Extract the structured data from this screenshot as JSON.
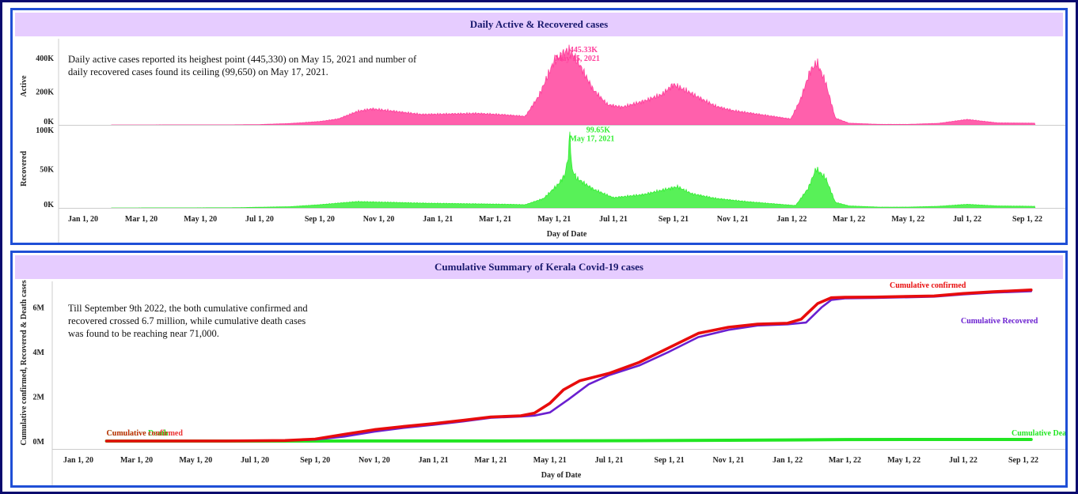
{
  "top_panel": {
    "title": "Daily Active & Recovered cases",
    "annotation": "Daily active cases reported its heighest point (445,330) on May 15, 2021 and number of daily recovered cases found its ceiling (99,650) on May 17, 2021."
  },
  "bottom_panel": {
    "title": "Cumulative Summary of Kerala Covid-19 cases",
    "annotation": "Till September 9th 2022, the both cumulative confirmed and recovered crossed 6.7 million, while cumulative death cases was found to be reaching near 71,000."
  },
  "colors": {
    "active": "#ff3d9a",
    "recovered_area": "#33ee33",
    "confirmed": "#e80c0c",
    "cum_recovered": "#6a1fd0",
    "deaths": "#22e622",
    "title_band": "#e6ccff",
    "panel_border": "#1f4fd6",
    "outer_border": "#0a0a6e"
  },
  "chart_data": [
    {
      "type": "area",
      "name": "active",
      "ylabel": "Active",
      "ylim": [
        0,
        460000
      ],
      "yticks": [
        "0K",
        "200K",
        "400K"
      ],
      "yticks_values": [
        0,
        200000,
        400000
      ],
      "x": [
        "2020-01-30",
        "2020-04-01",
        "2020-06-01",
        "2020-07-01",
        "2020-08-01",
        "2020-09-01",
        "2020-09-20",
        "2020-10-10",
        "2020-10-25",
        "2020-11-15",
        "2020-12-15",
        "2021-01-15",
        "2021-02-10",
        "2021-03-10",
        "2021-04-01",
        "2021-04-15",
        "2021-05-01",
        "2021-05-15",
        "2021-05-25",
        "2021-06-10",
        "2021-06-25",
        "2021-07-10",
        "2021-08-01",
        "2021-08-20",
        "2021-09-01",
        "2021-09-15",
        "2021-10-01",
        "2021-10-15",
        "2021-11-01",
        "2021-12-01",
        "2021-12-31",
        "2022-01-10",
        "2022-01-20",
        "2022-01-27",
        "2022-02-05",
        "2022-02-15",
        "2022-03-01",
        "2022-04-01",
        "2022-05-01",
        "2022-06-01",
        "2022-07-01",
        "2022-08-01",
        "2022-09-09"
      ],
      "values": [
        0,
        300,
        500,
        2000,
        8000,
        20000,
        35000,
        80000,
        95000,
        82000,
        62000,
        65000,
        68000,
        60000,
        50000,
        170000,
        380000,
        445330,
        380000,
        210000,
        120000,
        105000,
        140000,
        180000,
        240000,
        200000,
        150000,
        110000,
        85000,
        60000,
        35000,
        150000,
        320000,
        370000,
        250000,
        40000,
        10000,
        3000,
        3000,
        9000,
        32000,
        12000,
        10000
      ],
      "peak": {
        "value_label": "445.33K",
        "date_label": "May 15, 2021",
        "x": "2021-05-15",
        "y": 445330
      }
    },
    {
      "type": "area",
      "name": "recovered",
      "ylabel": "Recovered",
      "ylim": [
        0,
        100000
      ],
      "yticks": [
        "0K",
        "50K",
        "100K"
      ],
      "yticks_values": [
        0,
        50000,
        100000
      ],
      "x": [
        "2020-01-30",
        "2020-06-01",
        "2020-08-01",
        "2020-09-01",
        "2020-09-20",
        "2020-10-10",
        "2020-10-25",
        "2020-11-15",
        "2020-12-15",
        "2021-01-15",
        "2021-02-15",
        "2021-03-15",
        "2021-04-01",
        "2021-04-20",
        "2021-05-05",
        "2021-05-12",
        "2021-05-16",
        "2021-05-17",
        "2021-05-19",
        "2021-05-24",
        "2021-06-10",
        "2021-07-01",
        "2021-08-01",
        "2021-08-25",
        "2021-09-05",
        "2021-09-20",
        "2021-10-15",
        "2021-11-15",
        "2021-12-15",
        "2022-01-05",
        "2022-01-18",
        "2022-01-26",
        "2022-02-05",
        "2022-02-15",
        "2022-03-01",
        "2022-04-01",
        "2022-05-01",
        "2022-06-01",
        "2022-07-01",
        "2022-08-01",
        "2022-09-09"
      ],
      "values": [
        0,
        200,
        1500,
        4000,
        6000,
        8000,
        7500,
        7000,
        6000,
        5500,
        5000,
        4500,
        4000,
        12000,
        30000,
        42000,
        70000,
        99650,
        50000,
        38000,
        24000,
        13000,
        17000,
        24000,
        27000,
        18000,
        12000,
        8000,
        5000,
        3000,
        25000,
        50000,
        38000,
        7000,
        2500,
        1000,
        1000,
        2000,
        4500,
        2500,
        2000
      ],
      "peak": {
        "value_label": "99.65K",
        "date_label": "May 17, 2021",
        "x": "2021-05-17",
        "y": 99650
      }
    },
    {
      "type": "line",
      "name": "cumulative",
      "xlabel": "Day of Date",
      "ylabel": "Cumulative confirmed, Recovered & Death cases",
      "ylim": [
        0,
        7000000
      ],
      "yticks": [
        "0M",
        "2M",
        "4M",
        "6M"
      ],
      "yticks_values": [
        0,
        2000000,
        4000000,
        6000000
      ],
      "series": [
        {
          "name": "Cumulative confirmed",
          "x": [
            "2020-01-30",
            "2020-06-01",
            "2020-08-01",
            "2020-09-01",
            "2020-10-01",
            "2020-11-01",
            "2020-12-01",
            "2021-01-01",
            "2021-02-01",
            "2021-03-01",
            "2021-04-01",
            "2021-04-15",
            "2021-05-01",
            "2021-05-15",
            "2021-06-01",
            "2021-07-01",
            "2021-08-01",
            "2021-09-01",
            "2021-10-01",
            "2021-11-01",
            "2021-12-01",
            "2022-01-01",
            "2022-01-15",
            "2022-02-01",
            "2022-02-15",
            "2022-03-01",
            "2022-04-01",
            "2022-06-01",
            "2022-07-01",
            "2022-08-01",
            "2022-09-09"
          ],
          "values": [
            0,
            2000,
            25000,
            90000,
            300000,
            510000,
            650000,
            780000,
            930000,
            1080000,
            1130000,
            1250000,
            1690000,
            2290000,
            2700000,
            3030000,
            3520000,
            4180000,
            4820000,
            5090000,
            5230000,
            5270000,
            5450000,
            6150000,
            6410000,
            6430000,
            6440000,
            6490000,
            6600000,
            6680000,
            6760000
          ],
          "end_label": "Cumulative confirmed",
          "start_label": "Cumulative confirmed"
        },
        {
          "name": "Cumulative Recovered",
          "x": [
            "2020-01-30",
            "2020-06-01",
            "2020-08-01",
            "2020-09-01",
            "2020-10-01",
            "2020-11-01",
            "2020-12-01",
            "2021-01-01",
            "2021-02-01",
            "2021-03-01",
            "2021-04-01",
            "2021-04-15",
            "2021-05-01",
            "2021-05-20",
            "2021-06-10",
            "2021-07-01",
            "2021-08-01",
            "2021-09-01",
            "2021-10-01",
            "2021-11-01",
            "2021-12-01",
            "2022-01-01",
            "2022-01-20",
            "2022-02-05",
            "2022-02-15",
            "2022-03-01",
            "2022-04-01",
            "2022-06-01",
            "2022-07-01",
            "2022-08-01",
            "2022-09-09"
          ],
          "values": [
            0,
            1500,
            18000,
            65000,
            200000,
            420000,
            590000,
            730000,
            880000,
            1040000,
            1100000,
            1140000,
            1280000,
            1860000,
            2540000,
            2950000,
            3380000,
            4000000,
            4650000,
            4970000,
            5170000,
            5220000,
            5300000,
            5980000,
            6310000,
            6380000,
            6400000,
            6460000,
            6560000,
            6640000,
            6700000
          ],
          "end_label": "Cumulative Recovered"
        },
        {
          "name": "Cumulative Death",
          "x": [
            "2020-01-30",
            "2020-06-01",
            "2020-08-01",
            "2020-11-01",
            "2021-02-01",
            "2021-05-01",
            "2021-08-01",
            "2021-11-01",
            "2022-01-01",
            "2022-03-01",
            "2022-06-01",
            "2022-09-09"
          ],
          "values": [
            0,
            20,
            300,
            1800,
            4000,
            6000,
            18000,
            35000,
            50000,
            66000,
            69800,
            71000
          ],
          "end_label": "Cumulative Death",
          "start_label": "Cumulative Death"
        }
      ]
    }
  ],
  "x_axis": {
    "label": "Day of Date",
    "tick_labels": [
      "Jan 1, 20",
      "Mar 1, 20",
      "May 1, 20",
      "Jul 1, 20",
      "Sep 1, 20",
      "Nov 1, 20",
      "Jan 1, 21",
      "Mar 1, 21",
      "May 1, 21",
      "Jul 1, 21",
      "Sep 1, 21",
      "Nov 1, 21",
      "Jan 1, 22",
      "Mar 1, 22",
      "May 1, 22",
      "Jul 1, 22",
      "Sep 1, 22"
    ],
    "tick_dates": [
      "2020-01-01",
      "2020-03-01",
      "2020-05-01",
      "2020-07-01",
      "2020-09-01",
      "2020-11-01",
      "2021-01-01",
      "2021-03-01",
      "2021-05-01",
      "2021-07-01",
      "2021-09-01",
      "2021-11-01",
      "2022-01-01",
      "2022-03-01",
      "2022-05-01",
      "2022-07-01",
      "2022-09-01"
    ]
  }
}
